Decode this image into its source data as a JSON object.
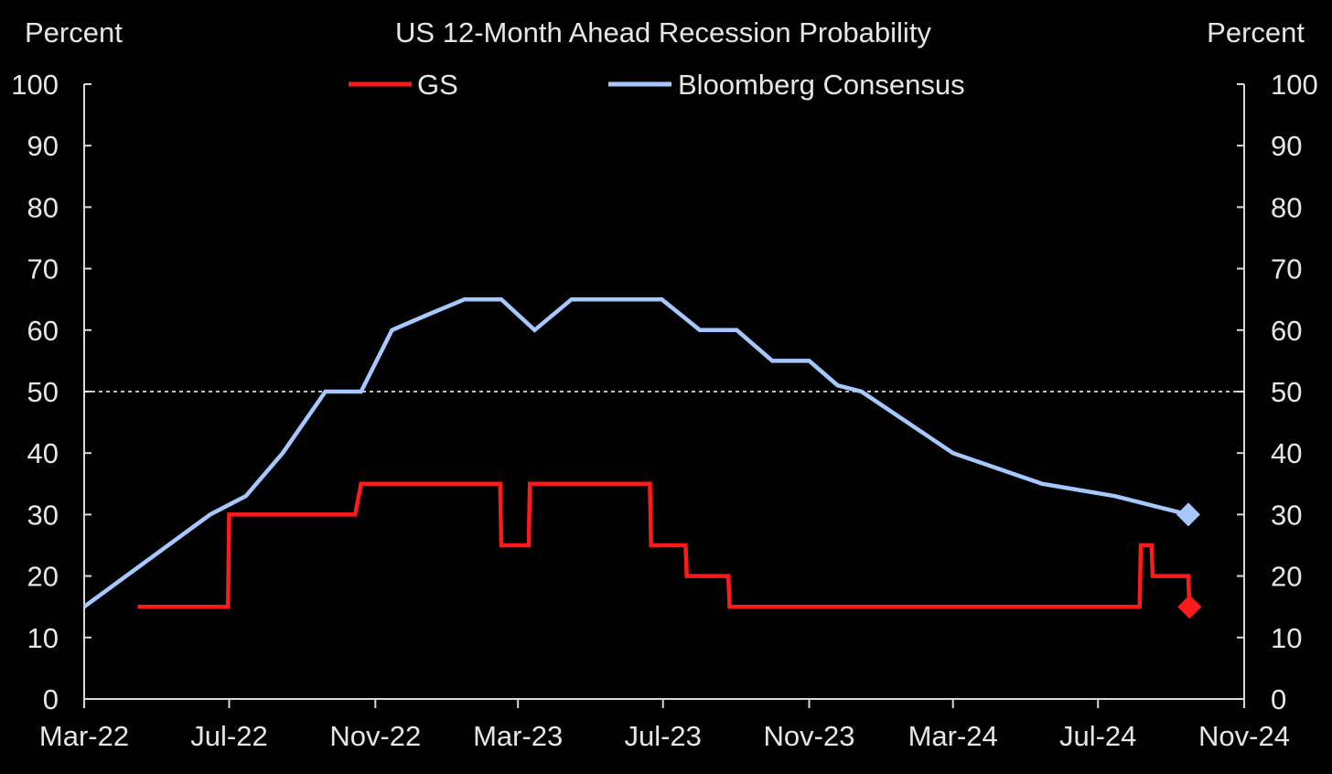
{
  "chart_data": {
    "type": "line",
    "title": "US 12-Month Ahead Recession Probability",
    "ylabel_left": "Percent",
    "ylabel_right": "Percent",
    "ylim": [
      0,
      100
    ],
    "yticks": [
      "0",
      "10",
      "20",
      "30",
      "40",
      "50",
      "60",
      "70",
      "80",
      "90",
      "100"
    ],
    "xlim": [
      "2022-03-01",
      "2024-11-01"
    ],
    "xticks": [
      {
        "date": "2022-03-01",
        "label": "Mar-22"
      },
      {
        "date": "2022-07-01",
        "label": "Jul-22"
      },
      {
        "date": "2022-11-01",
        "label": "Nov-22"
      },
      {
        "date": "2023-03-01",
        "label": "Mar-23"
      },
      {
        "date": "2023-07-01",
        "label": "Jul-23"
      },
      {
        "date": "2023-11-01",
        "label": "Nov-23"
      },
      {
        "date": "2024-03-01",
        "label": "Mar-24"
      },
      {
        "date": "2024-07-01",
        "label": "Jul-24"
      },
      {
        "date": "2024-11-01",
        "label": "Nov-24"
      }
    ],
    "reference_line": {
      "y": 50,
      "style": "dotted"
    },
    "legend_position": "top-center",
    "series": [
      {
        "name": "GS",
        "color": "#ff1a1a",
        "step": true,
        "points": [
          [
            "2022-04-15",
            15
          ],
          [
            "2022-06-30",
            15
          ],
          [
            "2022-07-01",
            30
          ],
          [
            "2022-10-15",
            30
          ],
          [
            "2022-10-20",
            35
          ],
          [
            "2023-02-14",
            35
          ],
          [
            "2023-02-15",
            25
          ],
          [
            "2023-03-10",
            25
          ],
          [
            "2023-03-11",
            35
          ],
          [
            "2023-06-20",
            35
          ],
          [
            "2023-06-21",
            25
          ],
          [
            "2023-07-20",
            25
          ],
          [
            "2023-07-21",
            20
          ],
          [
            "2023-08-25",
            20
          ],
          [
            "2023-08-26",
            15
          ],
          [
            "2024-08-05",
            15
          ],
          [
            "2024-08-06",
            25
          ],
          [
            "2024-08-15",
            25
          ],
          [
            "2024-08-16",
            20
          ],
          [
            "2024-09-15",
            20
          ],
          [
            "2024-09-16",
            15
          ]
        ],
        "final_marker": {
          "date": "2024-09-16",
          "value": 15,
          "shape": "diamond"
        }
      },
      {
        "name": "Bloomberg Consensus",
        "color": "#a6c8ff",
        "step": false,
        "points": [
          [
            "2022-03-01",
            15
          ],
          [
            "2022-06-15",
            30
          ],
          [
            "2022-07-15",
            33
          ],
          [
            "2022-08-15",
            40
          ],
          [
            "2022-09-20",
            50
          ],
          [
            "2022-10-20",
            50
          ],
          [
            "2022-11-15",
            60
          ],
          [
            "2022-12-15",
            62.5
          ],
          [
            "2023-01-15",
            65
          ],
          [
            "2023-02-15",
            65
          ],
          [
            "2023-03-15",
            60
          ],
          [
            "2023-04-15",
            65
          ],
          [
            "2023-06-30",
            65
          ],
          [
            "2023-08-01",
            60
          ],
          [
            "2023-09-01",
            60
          ],
          [
            "2023-10-01",
            55
          ],
          [
            "2023-11-01",
            55
          ],
          [
            "2023-11-25",
            51
          ],
          [
            "2023-12-15",
            50
          ],
          [
            "2024-03-01",
            40
          ],
          [
            "2024-05-15",
            35
          ],
          [
            "2024-07-15",
            33
          ],
          [
            "2024-09-15",
            30
          ]
        ],
        "final_marker": {
          "date": "2024-09-15",
          "value": 30,
          "shape": "diamond"
        }
      }
    ]
  }
}
